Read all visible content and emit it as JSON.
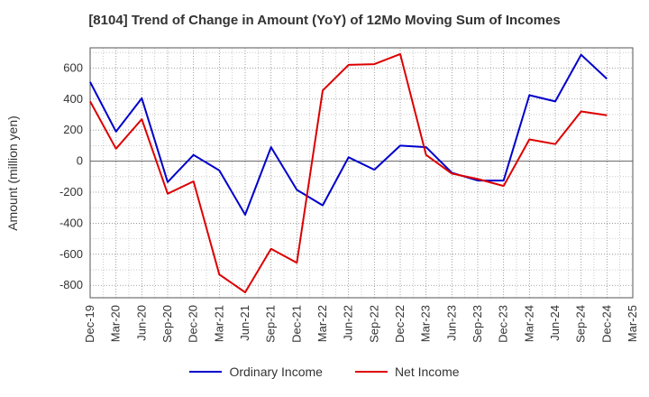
{
  "chart_data": {
    "type": "line",
    "title": "[8104]  Trend of Change in Amount (YoY) of 12Mo Moving Sum of Incomes",
    "ylabel": "Amount (million yen)",
    "xlabel": "",
    "ylim": [
      -880,
      730
    ],
    "yticks": [
      600,
      400,
      200,
      0,
      -200,
      -400,
      -600,
      -800
    ],
    "categories": [
      "Dec-19",
      "Mar-20",
      "Jun-20",
      "Sep-20",
      "Dec-20",
      "Mar-21",
      "Jun-21",
      "Sep-21",
      "Dec-21",
      "Mar-22",
      "Jun-22",
      "Sep-22",
      "Dec-22",
      "Mar-23",
      "Jun-23",
      "Sep-23",
      "Dec-23",
      "Mar-24",
      "Jun-24",
      "Sep-24",
      "Dec-24",
      "Mar-25"
    ],
    "series": [
      {
        "name": "Ordinary Income",
        "color": "#0000cc",
        "values": [
          510,
          190,
          405,
          -135,
          40,
          -60,
          -345,
          90,
          -185,
          -285,
          25,
          -55,
          100,
          90,
          -75,
          -125,
          -125,
          425,
          385,
          685,
          530,
          null
        ]
      },
      {
        "name": "Net Income",
        "color": "#dd0000",
        "values": [
          385,
          80,
          270,
          -210,
          -130,
          -730,
          -845,
          -565,
          -655,
          455,
          620,
          625,
          690,
          40,
          -80,
          -115,
          -160,
          140,
          110,
          320,
          295,
          null
        ]
      }
    ],
    "grid": true,
    "legend_position": "bottom-center"
  }
}
